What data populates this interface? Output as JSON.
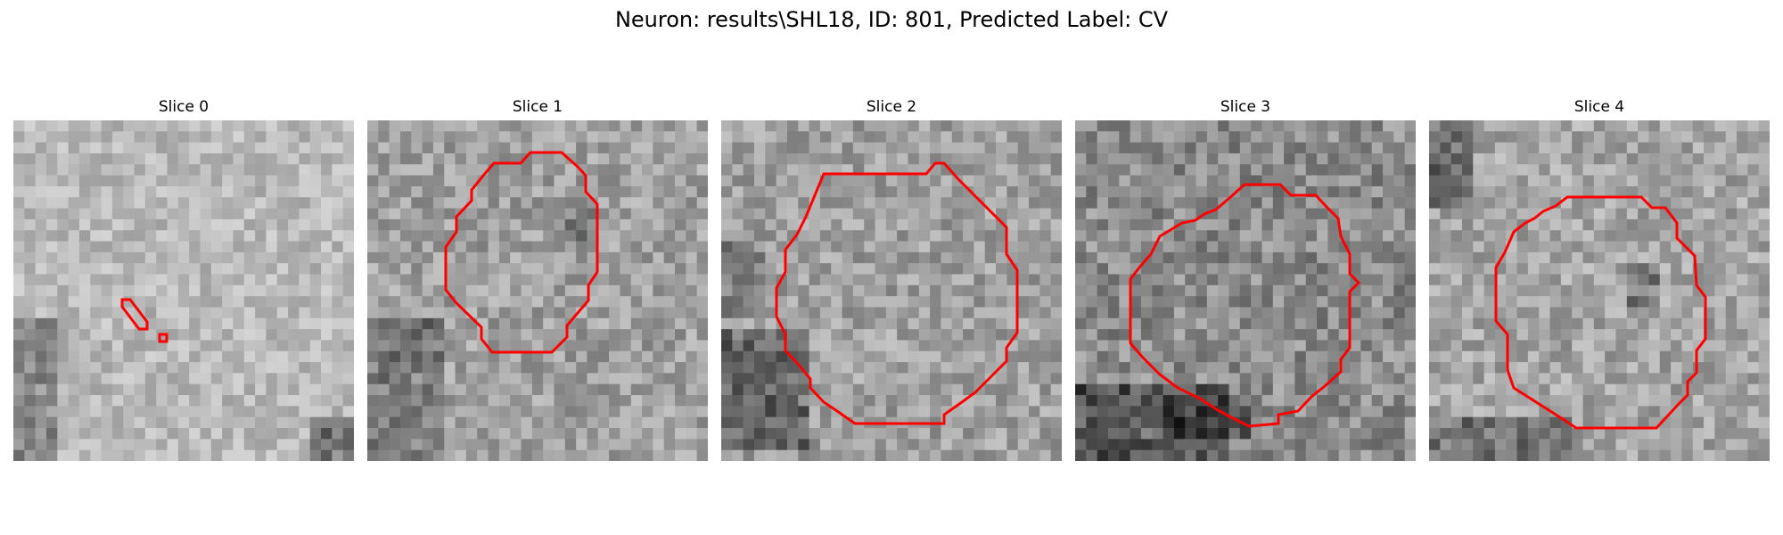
{
  "figure": {
    "title": "Neuron: results\\SHL18, ID: 801, Predicted Label: CV"
  },
  "slices": [
    {
      "title": "Slice 0"
    },
    {
      "title": "Slice 1"
    },
    {
      "title": "Slice 2"
    },
    {
      "title": "Slice 3"
    },
    {
      "title": "Slice 4"
    }
  ],
  "colors": {
    "contour": "#ff0000",
    "background": "#ffffff"
  }
}
